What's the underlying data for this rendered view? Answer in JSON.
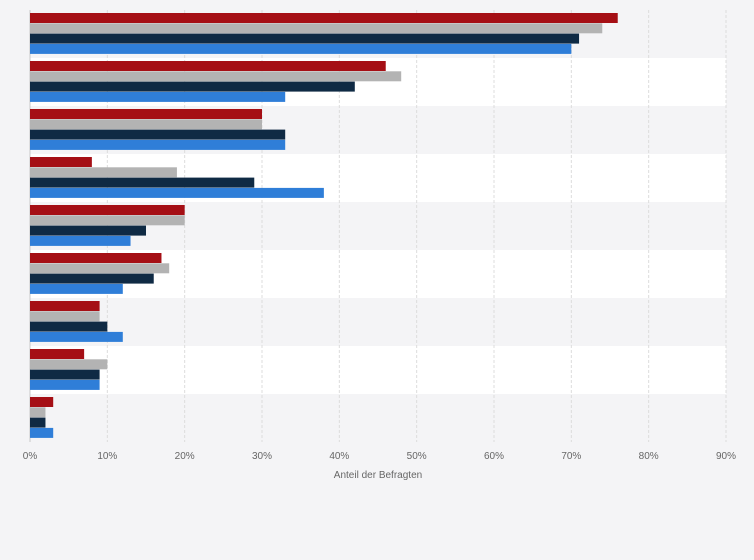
{
  "chart_data": {
    "type": "bar",
    "orientation": "horizontal",
    "title": "",
    "xlabel": "Anteil der Befragten",
    "ylabel": "",
    "xlim": [
      0,
      90
    ],
    "x_ticks": [
      "0%",
      "10%",
      "20%",
      "30%",
      "40%",
      "50%",
      "60%",
      "70%",
      "80%",
      "90%"
    ],
    "grid": true,
    "legend": "none",
    "categories": [
      "",
      "",
      "",
      "",
      "",
      "",
      "",
      "",
      ""
    ],
    "series": [
      {
        "color": "#a50f15",
        "values": [
          76,
          46,
          30,
          8,
          20,
          17,
          9,
          7,
          3
        ]
      },
      {
        "color": "#b3b3b3",
        "values": [
          74,
          48,
          30,
          19,
          20,
          18,
          9,
          10,
          2
        ]
      },
      {
        "color": "#0f2a44",
        "values": [
          71,
          42,
          33,
          29,
          15,
          16,
          10,
          9,
          2
        ]
      },
      {
        "color": "#2f7ed8",
        "values": [
          70,
          33,
          33,
          38,
          13,
          12,
          12,
          9,
          3
        ]
      }
    ]
  }
}
